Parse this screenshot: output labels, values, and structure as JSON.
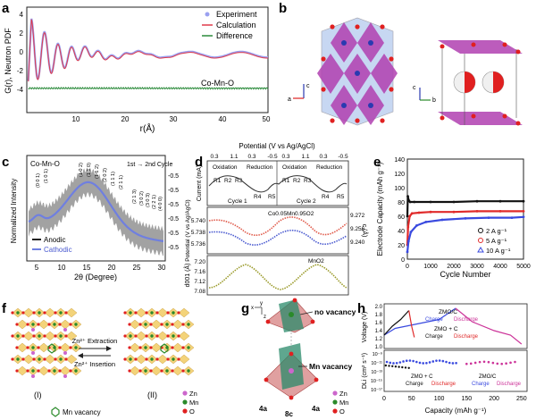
{
  "panels": {
    "a": {
      "letter": "a",
      "ylabel": "G(r), Neutron PDF",
      "xlabel": "r(Å)",
      "xticks": [
        "10",
        "20",
        "30",
        "40",
        "50"
      ],
      "yticks": [
        "4",
        "2",
        "0",
        "-2",
        "-4"
      ],
      "legend": [
        "Experiment",
        "Calculation",
        "Difference"
      ],
      "sample": "Co-Mn-O"
    },
    "b": {
      "letter": "b",
      "axis_c": "c",
      "axis_a": "a",
      "axis_b": "b"
    },
    "c": {
      "letter": "c",
      "ylabel": "Normalized Intensity",
      "xlabel": "2θ (Degree)",
      "xticks": [
        "5",
        "10",
        "15",
        "20",
        "25",
        "30"
      ],
      "right_ticks": [
        "-0.5",
        "-0.5",
        "-0.5",
        "-0.5",
        "-0.5",
        "-0.5"
      ],
      "sample": "Co-Mn-O",
      "cycle_note": "1st → 2nd Cycle",
      "legend": [
        "Anodic",
        "Cathodic"
      ],
      "hkl": [
        "(0 0 1)",
        "(1 0 1)",
        "(1 0 2)",
        "(1 1 0)",
        "(1 1 2)",
        "(2 0 2)",
        "(1 1 1)",
        "(2 1 1)",
        "(2 1 3)",
        "(3 0 2)",
        "(3 0 3)",
        "(2 2 1)",
        "(4 0 0)"
      ]
    },
    "d": {
      "letter": "d",
      "top_title": "Potential (V vs Ag/AgCl)",
      "top_ticks": [
        "0.3",
        "1.1",
        "0.3",
        "-0.5",
        "0.3",
        "1.1",
        "0.3",
        "-0.5"
      ],
      "phases": [
        "Oxidation",
        "Reduction",
        "Oxidation",
        "Reduction"
      ],
      "steps": [
        "R1",
        "R2",
        "R3",
        "R4",
        "R5",
        "R1",
        "R2",
        "R3",
        "R4",
        "R5"
      ],
      "cycles": [
        "Cycle 1",
        "Cycle 2"
      ],
      "current_label": "Current (mA)",
      "potential_label": "Potential (V vs Ag/AgCl)",
      "a_label": "a (Å)",
      "c_label": "c (Å)",
      "d_label": "d001 (Å)",
      "compound1": "Co0.05Mn0.95O2",
      "compound2": "MnO2",
      "a_ticks": [
        "5.740",
        "5.738",
        "5.736"
      ],
      "c_ticks": [
        "9.272",
        "9.256",
        "9.240"
      ],
      "d_ticks": [
        "7.20",
        "7.16",
        "7.12",
        "7.08"
      ]
    },
    "e": {
      "letter": "e",
      "ylabel": "Electrode Capacity (mAh g⁻¹)",
      "xlabel": "Cycle Number",
      "xticks": [
        "0",
        "1000",
        "2000",
        "3000",
        "4000",
        "5000"
      ],
      "yticks": [
        "0",
        "20",
        "40",
        "60",
        "80",
        "100",
        "120",
        "140"
      ],
      "legend": [
        "2 A g⁻¹",
        "5 A g⁻¹",
        "10 A g⁻¹"
      ]
    },
    "f": {
      "letter": "f",
      "left_roman": "(I)",
      "right_roman": "(II)",
      "top_arrow": "Zn²⁺ Extraction",
      "bottom_arrow": "Zn²⁺ Insertion",
      "vacancy": "Mn vacancy",
      "legend": [
        "Zn",
        "Mn",
        "O"
      ]
    },
    "g": {
      "letter": "g",
      "no_vacancy": "no vacancy",
      "mn_vacancy": "Mn vacancy",
      "sites": [
        "4a",
        "8c",
        "4a"
      ],
      "legend": [
        "Zn",
        "Mn",
        "O"
      ],
      "axes": [
        "x",
        "y",
        "z"
      ]
    },
    "h": {
      "letter": "h",
      "v_label": "Voltage (V)",
      "d_label": "DLi (cm² s⁻¹)",
      "xlabel": "Capacity (mAh g⁻¹)",
      "xticks": [
        "0",
        "50",
        "100",
        "150",
        "200",
        "250"
      ],
      "v_ticks": [
        "2.0",
        "1.8",
        "1.6",
        "1.4",
        "1.2",
        "1.0"
      ],
      "d_ticks": [
        "10⁻⁹",
        "10⁻¹¹",
        "10⁻¹³",
        "10⁻¹⁵",
        "10⁻¹⁷"
      ],
      "zmo_c": "ZMO/C",
      "zmo_plus_c": "ZMO + C",
      "charge": "Charge",
      "discharge": "Discharge"
    }
  },
  "colors": {
    "experiment": "#9aa0f0",
    "calculation": "#e03a4a",
    "difference": "#2a8a3a",
    "anodic": "#222222",
    "cathodic": "#6f7fe0",
    "e_black": "#111111",
    "e_red": "#e02a2a",
    "e_blue": "#3a4adf",
    "crystal_purple": "#b040b0",
    "crystal_blue": "#9bb8e8",
    "oxygen": "#e02020",
    "mn_green": "#2a8a2a"
  },
  "chart_data": [
    {
      "type": "line",
      "panel": "a",
      "title": "",
      "xlabel": "r(Å)",
      "ylabel": "G(r), Neutron PDF",
      "xlim": [
        1,
        50
      ],
      "ylim": [
        -5,
        4.5
      ],
      "series": [
        {
          "name": "Experiment",
          "x": [
            1.5,
            2.0,
            2.5,
            3.0,
            3.5,
            4.0,
            5.0,
            6.0,
            8.0,
            10,
            15,
            20,
            30,
            40,
            50
          ],
          "y": [
            -2.8,
            3.5,
            -0.5,
            2.0,
            -0.8,
            1.5,
            0.6,
            -0.4,
            0.5,
            0.3,
            0.2,
            -0.2,
            0.1,
            0.1,
            0.0
          ]
        },
        {
          "name": "Calculation",
          "x": [
            1.5,
            2.0,
            2.5,
            3.0,
            3.5,
            4.0,
            5.0,
            6.0,
            8.0,
            10,
            15,
            20,
            30,
            40,
            50
          ],
          "y": [
            -2.7,
            3.3,
            -0.4,
            1.9,
            -0.7,
            1.4,
            0.5,
            -0.3,
            0.4,
            0.3,
            0.2,
            -0.2,
            0.1,
            0.1,
            0.0
          ]
        },
        {
          "name": "Difference",
          "x": [
            1.5,
            50
          ],
          "y": [
            -3.6,
            -3.6
          ]
        }
      ]
    },
    {
      "type": "line",
      "panel": "e",
      "title": "",
      "xlabel": "Cycle Number",
      "ylabel": "Electrode Capacity (mAh g⁻¹)",
      "xlim": [
        0,
        5000
      ],
      "ylim": [
        0,
        140
      ],
      "series": [
        {
          "name": "2 A g⁻¹",
          "x": [
            0,
            20,
            60,
            120,
            300,
            1000,
            2000,
            3000,
            4000,
            5000
          ],
          "y": [
            60,
            88,
            82,
            80,
            80,
            80,
            80,
            81,
            81,
            81
          ]
        },
        {
          "name": "5 A g⁻¹",
          "x": [
            0,
            30,
            100,
            200,
            500,
            1000,
            2000,
            3000,
            4000,
            5000
          ],
          "y": [
            20,
            45,
            60,
            64,
            65,
            66,
            66,
            67,
            67,
            67
          ]
        },
        {
          "name": "10 A g⁻¹",
          "x": [
            0,
            50,
            150,
            400,
            800,
            1500,
            2500,
            3500,
            4500,
            5000
          ],
          "y": [
            10,
            25,
            38,
            47,
            52,
            55,
            57,
            58,
            58,
            59
          ]
        }
      ]
    },
    {
      "type": "line",
      "panel": "h",
      "title": "",
      "xlabel": "Capacity (mAh g⁻¹)",
      "ylabel": "Voltage (V)",
      "xlim": [
        0,
        260
      ],
      "ylim": [
        1.0,
        2.0
      ],
      "series": [
        {
          "name": "ZMO/C Charge",
          "x": [
            0,
            20,
            60,
            100,
            130
          ],
          "y": [
            1.3,
            1.45,
            1.55,
            1.65,
            1.9
          ]
        },
        {
          "name": "ZMO/C Discharge",
          "x": [
            130,
            160,
            200,
            230,
            250
          ],
          "y": [
            1.9,
            1.6,
            1.4,
            1.3,
            1.1
          ]
        },
        {
          "name": "ZMO + C Charge",
          "x": [
            0,
            15,
            30,
            45
          ],
          "y": [
            1.3,
            1.5,
            1.65,
            1.85
          ]
        },
        {
          "name": "ZMO + C Discharge",
          "x": [
            45,
            50,
            55
          ],
          "y": [
            1.85,
            1.5,
            1.25
          ]
        }
      ]
    }
  ]
}
